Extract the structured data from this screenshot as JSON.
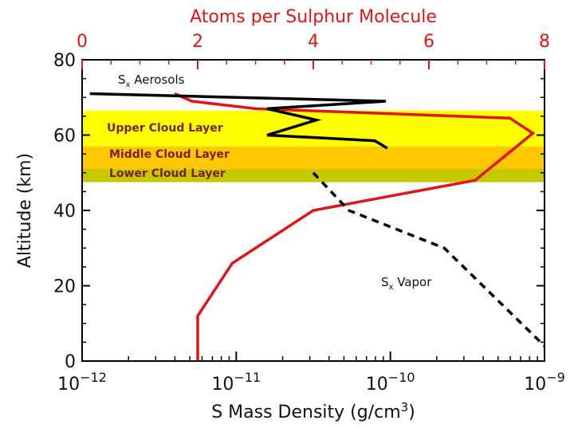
{
  "chart_data": {
    "type": "line",
    "xlabel_bottom": "S Mass Density (g/cm",
    "xlabel_bottom_sup": "3",
    "xlabel_bottom_end": ")",
    "xlabel_top": "Atoms per Sulphur Molecule",
    "ylabel": "Altitude (km)",
    "y_ticks": [
      "0",
      "20",
      "40",
      "60",
      "80"
    ],
    "x_bottom_ticks": [
      {
        "base": "10",
        "exp": "−12"
      },
      {
        "base": "10",
        "exp": "−11"
      },
      {
        "base": "10",
        "exp": "−10"
      },
      {
        "base": "10",
        "exp": "−9"
      }
    ],
    "x_top_ticks": [
      "0",
      "2",
      "4",
      "6",
      "8"
    ],
    "ylim": [
      0,
      80
    ],
    "x_bottom_range_log10": [
      -12,
      -9
    ],
    "x_top_range": [
      0,
      8
    ],
    "bands": [
      {
        "label": "Upper Cloud Layer",
        "y_range": [
          57,
          66.5
        ],
        "color": "#ffff00"
      },
      {
        "label": "Middle Cloud Layer",
        "y_range": [
          51,
          57
        ],
        "color": "#ffc800"
      },
      {
        "label": "Lower Cloud Layer",
        "y_range": [
          47.5,
          51
        ],
        "color": "#c8c800"
      }
    ],
    "annotations": {
      "aerosols": {
        "main": "S",
        "sub": "x",
        "rest": " Aerosols"
      },
      "vapor": {
        "main": "S",
        "sub": "x",
        "rest": " Vapor"
      }
    },
    "series": [
      {
        "style": "red-solid",
        "axis": "top",
        "color": "#e01515",
        "points": [
          {
            "x": 2.0,
            "y": 0
          },
          {
            "x": 2.0,
            "y": 12
          },
          {
            "x": 2.6,
            "y": 26
          },
          {
            "x": 4.0,
            "y": 40
          },
          {
            "x": 6.8,
            "y": 48
          },
          {
            "x": 7.8,
            "y": 60.5
          },
          {
            "x": 7.4,
            "y": 64.5
          },
          {
            "x": 3.0,
            "y": 67
          },
          {
            "x": 1.9,
            "y": 69
          },
          {
            "x": 1.6,
            "y": 71
          }
        ]
      },
      {
        "style": "black-solid",
        "axis": "bottom",
        "color": "#000000",
        "points": [
          {
            "x": -10.02,
            "y": 56.5
          },
          {
            "x": -10.1,
            "y": 58.5
          },
          {
            "x": -10.8,
            "y": 60
          },
          {
            "x": -10.48,
            "y": 64
          },
          {
            "x": -10.8,
            "y": 67
          },
          {
            "x": -10.03,
            "y": 69
          },
          {
            "x": -11.95,
            "y": 71
          }
        ]
      },
      {
        "style": "black-dashed",
        "axis": "bottom",
        "color": "#000000",
        "points": [
          {
            "x": -10.5,
            "y": 50
          },
          {
            "x": -10.27,
            "y": 40
          },
          {
            "x": -9.65,
            "y": 30
          },
          {
            "x": -9.0,
            "y": 4
          }
        ]
      }
    ]
  }
}
